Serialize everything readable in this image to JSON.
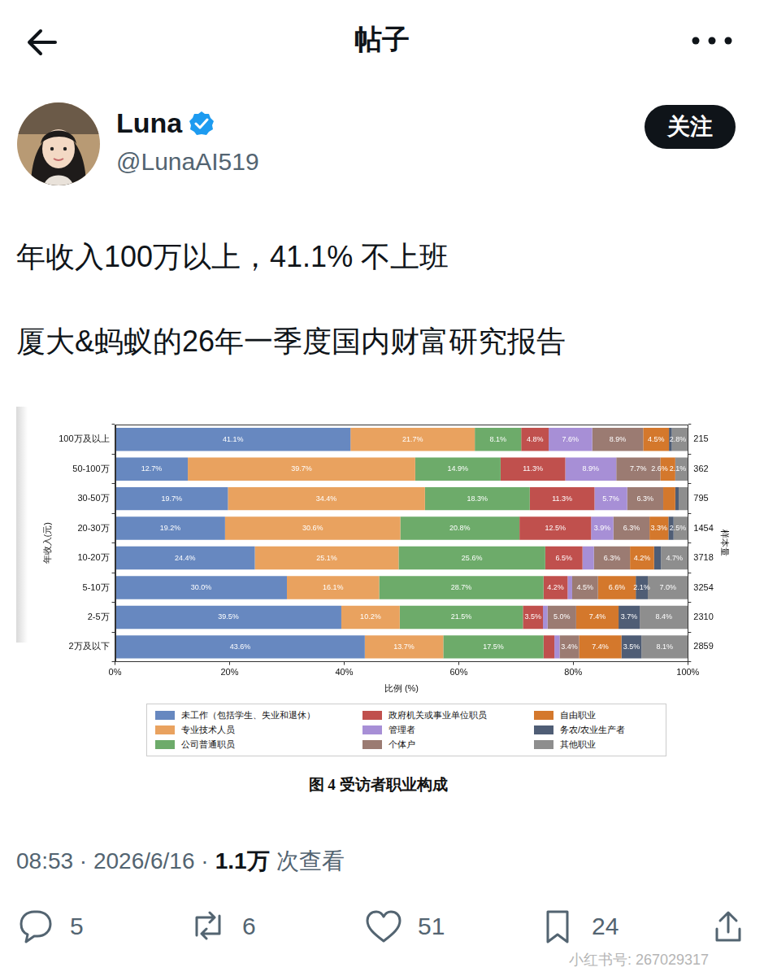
{
  "post": {
    "header_title": "帖子",
    "author": {
      "name": "Luna",
      "handle": "@LunaAI519"
    },
    "follow_button": "关注",
    "text": [
      "年收入100万以上，41.1% 不上班",
      "厦大&蚂蚁的26年一季度国内财富研究报告"
    ],
    "timestamp": "08:53 · 2026/6/16 ·",
    "views": "1.1万",
    "views_label": "次查看",
    "stats": {
      "replies": 5,
      "reposts": 6,
      "likes": 51,
      "bookmarks": 24
    },
    "watermark": "小红书号: 267029317"
  },
  "chart_data": {
    "type": "bar",
    "orientation": "horizontal",
    "stacked": true,
    "data_labels": true,
    "grid": false,
    "legend": "bottom",
    "caption": "图 4 受访者职业构成",
    "xlabel": "比例 (%)",
    "ylabel": "年收入(元)",
    "y2label": "样本量",
    "categories": [
      "100万及以上",
      "50-100万",
      "30-50万",
      "20-30万",
      "10-20万",
      "5-10万",
      "2-5万",
      "2万及以下"
    ],
    "sample_sizes": [
      215,
      362,
      795,
      1454,
      3718,
      3254,
      2310,
      2859
    ],
    "xlim": [
      0,
      100
    ],
    "xticks": [
      {
        "value": 0,
        "label": "0%"
      },
      {
        "value": 20,
        "label": "20%"
      },
      {
        "value": 40,
        "label": "40%"
      },
      {
        "value": 60,
        "label": "60%"
      },
      {
        "value": 80,
        "label": "80%"
      },
      {
        "value": 100,
        "label": "100%"
      }
    ],
    "series": [
      {
        "name": "未工作（包括学生、失业和退休）",
        "color": "#6788c0",
        "values": [
          41.1,
          12.7,
          19.7,
          19.2,
          24.4,
          30.0,
          39.5,
          43.6
        ],
        "value_labels": [
          "41.1%",
          "12.7%",
          "19.7%",
          "19.2%",
          "24.4%",
          "30.0%",
          "39.5%",
          "43.6%"
        ]
      },
      {
        "name": "专业技术人员",
        "color": "#e9a25f",
        "values": [
          21.7,
          39.7,
          34.4,
          30.6,
          25.1,
          16.1,
          10.2,
          13.7
        ],
        "value_labels": [
          "21.7%",
          "39.7%",
          "34.4%",
          "30.6%",
          "25.1%",
          "16.1%",
          "10.2%",
          "13.7%"
        ]
      },
      {
        "name": "公司普通职员",
        "color": "#6dab6a",
        "values": [
          8.1,
          14.9,
          18.3,
          20.8,
          25.6,
          28.7,
          21.5,
          17.5
        ],
        "value_labels": [
          "8.1%",
          "14.9%",
          "18.3%",
          "20.8%",
          "25.6%",
          "28.7%",
          "21.5%",
          "17.5%"
        ]
      },
      {
        "name": "政府机关或事业单位职员",
        "color": "#c0504d",
        "values": [
          4.8,
          11.3,
          11.3,
          12.5,
          6.5,
          4.2,
          3.5,
          1.9
        ],
        "value_labels": [
          "4.8%",
          "11.3%",
          "11.3%",
          "12.5%",
          "6.5%",
          "4.2%",
          "3.5%",
          null
        ]
      },
      {
        "name": "管理者",
        "color": "#a78fd6",
        "values": [
          7.6,
          8.9,
          5.7,
          3.9,
          2.0,
          0.8,
          0.8,
          0.9
        ],
        "value_labels": [
          "7.6%",
          "8.9%",
          "5.7%",
          "3.9%",
          null,
          null,
          null,
          null
        ]
      },
      {
        "name": "个体户",
        "color": "#9b7b72",
        "values": [
          8.9,
          7.7,
          6.3,
          6.3,
          6.3,
          4.5,
          5.0,
          3.4
        ],
        "value_labels": [
          "8.9%",
          "7.7%",
          "6.3%",
          "6.3%",
          "6.3%",
          "4.5%",
          "5.0%",
          "3.4%"
        ]
      },
      {
        "name": "自由职业",
        "color": "#d4782c",
        "values": [
          4.5,
          2.6,
          2.1,
          3.3,
          4.2,
          6.6,
          7.4,
          7.4
        ],
        "value_labels": [
          "4.5%",
          "2.6%",
          null,
          "3.3%",
          "4.2%",
          "6.6%",
          "7.4%",
          "7.4%"
        ]
      },
      {
        "name": "务农/农业生产者",
        "color": "#4f5d75",
        "values": [
          0.5,
          0.1,
          0.6,
          0.9,
          1.2,
          2.1,
          3.7,
          3.5
        ],
        "value_labels": [
          null,
          null,
          null,
          null,
          null,
          "2.1%",
          "3.7%",
          "3.5%"
        ]
      },
      {
        "name": "其他职业",
        "color": "#8e8e8e",
        "values": [
          2.8,
          2.1,
          1.6,
          2.5,
          4.7,
          7.0,
          8.4,
          8.1
        ],
        "value_labels": [
          "2.8%",
          "2.1%",
          null,
          "2.5%",
          "4.7%",
          "7.0%",
          "8.4%",
          "8.1%"
        ]
      }
    ]
  }
}
